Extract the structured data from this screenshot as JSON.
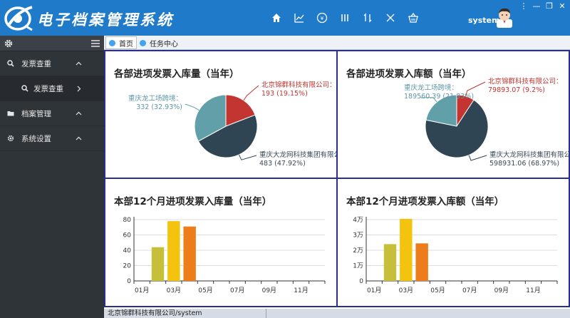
{
  "header": {
    "title": "电子档案管理系统",
    "toolbar_icons": [
      "home-icon",
      "line-chart-icon",
      "finance-icon",
      "columns-icon",
      "sort-icon",
      "close-icon",
      "basket-icon"
    ],
    "user": "system",
    "window_controls": [
      "⋮",
      "—",
      "❐",
      "✕"
    ],
    "accent": "#1f7ac9"
  },
  "sidebar": {
    "items": [
      {
        "label": "发票查重",
        "icon": "search-icon",
        "expanded": true
      },
      {
        "label": "发票查重",
        "icon": "search-icon",
        "sub": true
      },
      {
        "label": "档案管理",
        "icon": "folder-icon",
        "expanded": false
      },
      {
        "label": "系统设置",
        "icon": "gear-icon",
        "expanded": false
      }
    ]
  },
  "tabs": [
    {
      "label": "首页",
      "active": true
    },
    {
      "label": "任务中心",
      "active": false
    }
  ],
  "panels": {
    "p1": {
      "title": "各部进项发票入库量（当年）"
    },
    "p2": {
      "title": "各部进项发票入库额（当年）"
    },
    "p3": {
      "title": "本部12个月进项发票入库量（当年）"
    },
    "p4": {
      "title": "本部12个月进项发票入库额（当年）"
    }
  },
  "status": {
    "left": "北京锦群科技有限公司/system",
    "right": ""
  },
  "chart_data": [
    {
      "type": "pie",
      "title": "各部进项发票入库量（当年）",
      "slices": [
        {
          "name": "北京锦群科技有限公司",
          "value": 193,
          "percent": "19.15%",
          "color": "#c23531",
          "label_line1": "北京锦群科技有限公司：",
          "label_line2": "193 (19.15%)"
        },
        {
          "name": "重庆大龙网科技集团有限公司",
          "value": 483,
          "percent": "47.92%",
          "color": "#2f4554",
          "label_line1": "重庆大龙网科技集团有限公司：",
          "label_line2": "483 (47.92%)"
        },
        {
          "name": "重庆龙工场跨境",
          "value": 332,
          "percent": "32.93%",
          "color": "#61a0a8",
          "label_line1": "重庆龙工场跨境：",
          "label_line2": "332 (32.93%)"
        }
      ]
    },
    {
      "type": "pie",
      "title": "各部进项发票入库额（当年）",
      "slices": [
        {
          "name": "北京锦群科技有限公司",
          "value": 79893.07,
          "percent": "9.2%",
          "color": "#c23531",
          "label_line1": "北京锦群科技有限公司：",
          "label_line2": "79893.07 (9.2%)"
        },
        {
          "name": "重庆大龙网科技集团有限公司",
          "value": 598931.06,
          "percent": "68.97%",
          "color": "#2f4554",
          "label_line1": "重庆大龙网科技集团有限公司：",
          "label_line2": "598931.06 (68.97%)"
        },
        {
          "name": "重庆龙工场跨境",
          "value": 189560.39,
          "percent": "21.83%",
          "color": "#61a0a8",
          "label_line1": "重庆龙工场跨境：",
          "label_line2": "189560.39 (21.83%)"
        }
      ]
    },
    {
      "type": "bar",
      "title": "本部12个月进项发票入库量（当年）",
      "categories": [
        "01月",
        "02月",
        "03月",
        "04月",
        "05月",
        "06月",
        "07月",
        "08月",
        "09月",
        "10月",
        "11月",
        "12月"
      ],
      "tick_labels": [
        "01月",
        "03月",
        "05月",
        "07月",
        "09月",
        "11月"
      ],
      "values": [
        0,
        44,
        78,
        71,
        0,
        0,
        0,
        0,
        0,
        0,
        0,
        0
      ],
      "colors": [
        "#c5bf3a",
        "#c5bf3a",
        "#f3c30d",
        "#ed7d1a"
      ],
      "ylim": [
        0,
        80
      ],
      "yticks": [
        "0",
        "20",
        "40",
        "60",
        "80"
      ],
      "grid": true
    },
    {
      "type": "bar",
      "title": "本部12个月进项发票入库额（当年）",
      "categories": [
        "01月",
        "02月",
        "03月",
        "04月",
        "05月",
        "06月",
        "07月",
        "08月",
        "09月",
        "10月",
        "11月",
        "12月"
      ],
      "tick_labels": [
        "01月",
        "03月",
        "05月",
        "07月",
        "09月",
        "11月"
      ],
      "values": [
        0,
        24000,
        40500,
        24500,
        0,
        0,
        0,
        0,
        0,
        0,
        0,
        0
      ],
      "colors": [
        "#c5bf3a",
        "#c5bf3a",
        "#f3c30d",
        "#ed7d1a"
      ],
      "ylim": [
        0,
        40000
      ],
      "yticks": [
        "0",
        "1万",
        "2万",
        "3万",
        "4万"
      ],
      "grid": true
    }
  ]
}
